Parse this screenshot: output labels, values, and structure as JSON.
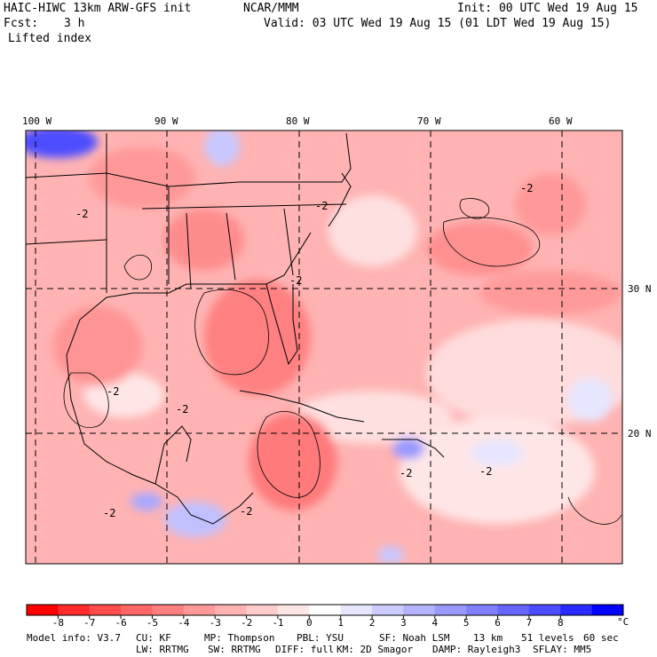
{
  "header": {
    "model_title": "HAIC-HIWC 13km ARW-GFS init",
    "org": "NCAR/MMM",
    "init": "Init: 00 UTC Wed 19 Aug 15",
    "fcst_label": "Fcst:",
    "fcst_value": "3 h",
    "valid": "Valid: 03 UTC Wed 19 Aug 15 (01 LDT Wed 19 Aug 15)",
    "field": "Lifted index"
  },
  "map": {
    "lon_labels": [
      "100 W",
      "90 W",
      "80 W",
      "70 W",
      "60 W"
    ],
    "lat_labels": [
      "30 N",
      "20 N"
    ],
    "contour_labels": [
      "-2",
      "-2",
      "-2",
      "-2",
      "-2",
      "-2",
      "-2",
      "-2",
      "-2",
      "-2"
    ]
  },
  "colorbar": {
    "tick_labels": [
      "-8",
      "-7",
      "-6",
      "-5",
      "-4",
      "-3",
      "-2",
      "-1",
      "0",
      "1",
      "2",
      "3",
      "4",
      "5",
      "6",
      "7",
      "8"
    ],
    "unit": "°C",
    "colors": [
      "#ff0000",
      "#ff2a2a",
      "#ff4d4d",
      "#ff6666",
      "#ff8080",
      "#ff9999",
      "#ffb3b3",
      "#ffcccc",
      "#ffe6e6",
      "#ffffff",
      "#e6e6ff",
      "#ccccff",
      "#b3b3ff",
      "#9999ff",
      "#8080ff",
      "#6666ff",
      "#4d4dff",
      "#2a2aff",
      "#0000ff"
    ]
  },
  "footer": {
    "line1": {
      "model_info": "Model info: V3.7",
      "cu": "CU: KF",
      "mp": "MP: Thompson",
      "pbl": "PBL: YSU",
      "sf": "SF: Noah LSM",
      "res": "13 km",
      "levels": "51 levels",
      "dt": "60 sec"
    },
    "line2": {
      "lw": "LW: RRTMG",
      "sw": "SW: RRTMG",
      "diff": "DIFF: full",
      "km": "KM: 2D Smagor",
      "damp": "DAMP: Rayleigh3",
      "sflay": "SFLAY: MM5"
    }
  }
}
